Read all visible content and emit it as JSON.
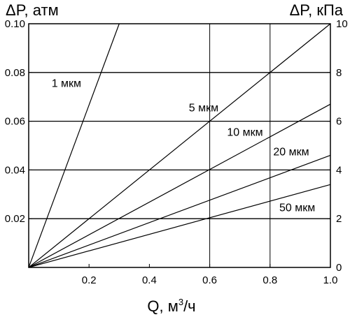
{
  "chart_data": {
    "type": "line",
    "xlabel": "Q, м³/ч",
    "xlabel_main": "Q, м",
    "xlabel_sup": "3",
    "xlabel_tail": "/ч",
    "ylabel_left": "ΔP, атм",
    "ylabel_right": "ΔP, кПа",
    "xlim": [
      0,
      1.0
    ],
    "ylim_left": [
      0,
      0.1
    ],
    "ylim_right": [
      0,
      10
    ],
    "x_ticks": [
      "0.2",
      "0.4",
      "0.6",
      "0.8",
      "1.0"
    ],
    "x_tick_values": [
      0.2,
      0.4,
      0.6,
      0.8,
      1.0
    ],
    "y_left_ticks": [
      "0.02",
      "0.04",
      "0.06",
      "0.08",
      "0.10"
    ],
    "y_left_tick_values": [
      0.02,
      0.04,
      0.06,
      0.08,
      0.1
    ],
    "y_right_ticks": [
      "0",
      "2",
      "4",
      "6",
      "8",
      "10"
    ],
    "y_right_tick_values": [
      0,
      2,
      4,
      6,
      8,
      10
    ],
    "grid_x": [
      0.6,
      0.8
    ],
    "grid_y": [
      0.02,
      0.04,
      0.06,
      0.08
    ],
    "series": [
      {
        "name": "1 мкм",
        "x": [
          0,
          0.3
        ],
        "y": [
          0,
          0.1
        ]
      },
      {
        "name": "5 мкм",
        "x": [
          0,
          1.0
        ],
        "y": [
          0,
          0.1
        ]
      },
      {
        "name": "10 мкм",
        "x": [
          0,
          1.0
        ],
        "y": [
          0,
          0.067
        ]
      },
      {
        "name": "20 мкм",
        "x": [
          0,
          1.0
        ],
        "y": [
          0,
          0.046
        ]
      },
      {
        "name": "50 мкм",
        "x": [
          0,
          1.0
        ],
        "y": [
          0,
          0.034
        ]
      }
    ],
    "series_label_positions": [
      {
        "x": 0.125,
        "y": 0.074
      },
      {
        "x": 0.58,
        "y": 0.064
      },
      {
        "x": 0.717,
        "y": 0.054
      },
      {
        "x": 0.87,
        "y": 0.046
      },
      {
        "x": 0.89,
        "y": 0.023
      }
    ]
  }
}
